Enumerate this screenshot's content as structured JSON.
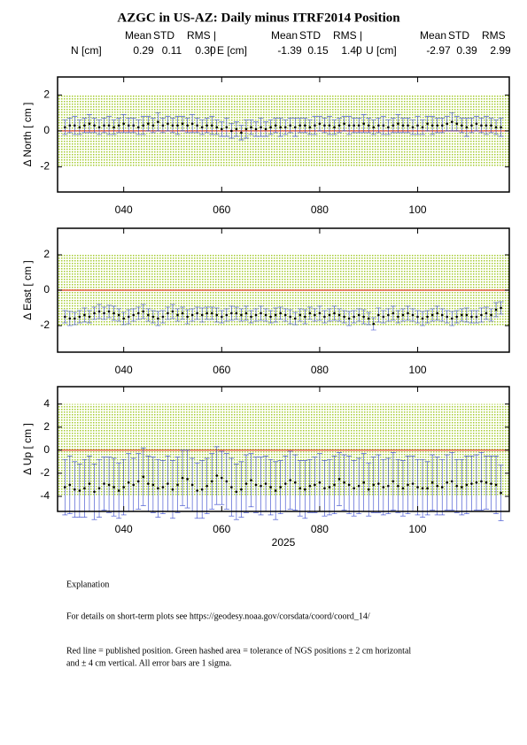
{
  "header": {
    "title": "AZGC in US-AZ: Daily minus ITRF2014 Position",
    "stats": [
      {
        "label": "N [cm]",
        "headers": [
          "Mean",
          "STD",
          "RMS |"
        ],
        "values": [
          "0.29",
          "0.11",
          "0.30"
        ],
        "separator": "|"
      },
      {
        "label": "E [cm]",
        "headers": [
          "Mean",
          "STD",
          "RMS |"
        ],
        "values": [
          "-1.39",
          "0.15",
          "1.40"
        ],
        "separator": "|"
      },
      {
        "label": "U [cm]",
        "headers": [
          "Mean",
          "STD",
          "RMS"
        ],
        "values": [
          "-2.97",
          "0.39",
          "2.99"
        ]
      }
    ]
  },
  "chart_data": [
    {
      "type": "errorbar",
      "y_label": "Δ North  [ cm ]",
      "x": [
        28,
        29,
        30,
        31,
        32,
        33,
        34,
        35,
        36,
        37,
        38,
        39,
        40,
        41,
        42,
        43,
        44,
        45,
        46,
        47,
        48,
        49,
        50,
        51,
        52,
        53,
        54,
        55,
        56,
        57,
        58,
        59,
        60,
        61,
        62,
        63,
        64,
        65,
        66,
        67,
        68,
        69,
        70,
        71,
        72,
        73,
        74,
        75,
        76,
        77,
        78,
        79,
        80,
        81,
        82,
        83,
        84,
        85,
        86,
        87,
        88,
        89,
        90,
        91,
        92,
        93,
        94,
        95,
        96,
        97,
        98,
        99,
        100,
        101,
        102,
        103,
        104,
        105,
        106,
        107,
        108,
        109,
        110,
        111,
        112,
        113,
        114,
        115,
        116,
        117
      ],
      "values": [
        0.2,
        0.3,
        0.3,
        0.2,
        0.3,
        0.4,
        0.3,
        0.2,
        0.3,
        0.3,
        0.2,
        0.3,
        0.4,
        0.3,
        0.3,
        0.2,
        0.3,
        0.4,
        0.3,
        0.5,
        0.3,
        0.4,
        0.3,
        0.3,
        0.4,
        0.3,
        0.4,
        0.3,
        0.2,
        0.3,
        0.3,
        0.2,
        0.1,
        0.2,
        0.0,
        0.1,
        -0.1,
        0.1,
        0.2,
        0.1,
        0.2,
        0.1,
        0.2,
        0.3,
        0.2,
        0.2,
        0.3,
        0.2,
        0.3,
        0.3,
        0.2,
        0.3,
        0.4,
        0.3,
        0.3,
        0.2,
        0.3,
        0.4,
        0.3,
        0.3,
        0.3,
        0.4,
        0.3,
        0.2,
        0.3,
        0.3,
        0.2,
        0.3,
        0.4,
        0.3,
        0.3,
        0.2,
        0.3,
        0.2,
        0.4,
        0.3,
        0.3,
        0.3,
        0.4,
        0.5,
        0.4,
        0.3,
        0.2,
        0.3,
        0.4,
        0.3,
        0.3,
        0.3,
        0.2,
        0.2
      ],
      "errors": [
        0.4,
        0.4,
        0.5,
        0.4,
        0.4,
        0.5,
        0.4,
        0.4,
        0.4,
        0.5,
        0.4,
        0.4,
        0.5,
        0.4,
        0.4,
        0.4,
        0.5,
        0.4,
        0.4,
        0.5,
        0.4,
        0.4,
        0.4,
        0.5,
        0.4,
        0.4,
        0.5,
        0.4,
        0.4,
        0.4,
        0.5,
        0.4,
        0.4,
        0.5,
        0.4,
        0.4,
        0.4,
        0.5,
        0.4,
        0.4,
        0.5,
        0.4,
        0.4,
        0.4,
        0.5,
        0.4,
        0.4,
        0.5,
        0.4,
        0.4,
        0.4,
        0.5,
        0.4,
        0.4,
        0.5,
        0.4,
        0.4,
        0.4,
        0.5,
        0.4,
        0.4,
        0.5,
        0.4,
        0.4,
        0.4,
        0.5,
        0.4,
        0.4,
        0.5,
        0.4,
        0.4,
        0.4,
        0.5,
        0.4,
        0.4,
        0.5,
        0.4,
        0.4,
        0.4,
        0.5,
        0.4,
        0.4,
        0.5,
        0.4,
        0.4,
        0.4,
        0.5,
        0.4,
        0.4,
        0.5
      ],
      "xlim": [
        26.5,
        118.7
      ],
      "ylim": [
        -3.4,
        3.0
      ],
      "xticks": [
        {
          "value": 40,
          "label": "040"
        },
        {
          "value": 60,
          "label": "060"
        },
        {
          "value": 80,
          "label": "080"
        },
        100
      ],
      "yticks": [
        -2,
        0,
        2
      ],
      "tolerance": [
        -2,
        2
      ],
      "reference": 0,
      "color": "#000000",
      "error_color": "#3344cc",
      "reference_color": "#e03a20",
      "tolerance_color": "#a6cc33"
    },
    {
      "type": "errorbar",
      "y_label": "Δ East  [ cm ]",
      "x": [
        28,
        29,
        30,
        31,
        32,
        33,
        34,
        35,
        36,
        37,
        38,
        39,
        40,
        41,
        42,
        43,
        44,
        45,
        46,
        47,
        48,
        49,
        50,
        51,
        52,
        53,
        54,
        55,
        56,
        57,
        58,
        59,
        60,
        61,
        62,
        63,
        64,
        65,
        66,
        67,
        68,
        69,
        70,
        71,
        72,
        73,
        74,
        75,
        76,
        77,
        78,
        79,
        80,
        81,
        82,
        83,
        84,
        85,
        86,
        87,
        88,
        89,
        90,
        91,
        92,
        93,
        94,
        95,
        96,
        97,
        98,
        99,
        100,
        101,
        102,
        103,
        104,
        105,
        106,
        107,
        108,
        109,
        110,
        111,
        112,
        113,
        114,
        115,
        116,
        117
      ],
      "values": [
        -1.5,
        -1.6,
        -1.6,
        -1.5,
        -1.4,
        -1.5,
        -1.3,
        -1.2,
        -1.3,
        -1.2,
        -1.3,
        -1.4,
        -1.6,
        -1.5,
        -1.4,
        -1.3,
        -1.2,
        -1.4,
        -1.5,
        -1.6,
        -1.5,
        -1.3,
        -1.2,
        -1.4,
        -1.3,
        -1.5,
        -1.4,
        -1.3,
        -1.4,
        -1.3,
        -1.3,
        -1.4,
        -1.5,
        -1.4,
        -1.3,
        -1.3,
        -1.4,
        -1.3,
        -1.5,
        -1.4,
        -1.3,
        -1.4,
        -1.5,
        -1.4,
        -1.3,
        -1.4,
        -1.5,
        -1.6,
        -1.4,
        -1.5,
        -1.3,
        -1.4,
        -1.3,
        -1.5,
        -1.4,
        -1.3,
        -1.4,
        -1.5,
        -1.6,
        -1.5,
        -1.4,
        -1.5,
        -1.6,
        -1.9,
        -1.4,
        -1.5,
        -1.4,
        -1.3,
        -1.5,
        -1.4,
        -1.3,
        -1.4,
        -1.5,
        -1.6,
        -1.5,
        -1.4,
        -1.3,
        -1.4,
        -1.5,
        -1.6,
        -1.5,
        -1.4,
        -1.4,
        -1.5,
        -1.5,
        -1.4,
        -1.3,
        -1.4,
        -1.1,
        -1.0
      ],
      "errors": [
        0.35,
        0.4,
        0.35,
        0.35,
        0.4,
        0.35,
        0.35,
        0.4,
        0.35,
        0.35,
        0.4,
        0.35,
        0.35,
        0.4,
        0.35,
        0.35,
        0.4,
        0.35,
        0.35,
        0.4,
        0.35,
        0.35,
        0.4,
        0.35,
        0.35,
        0.4,
        0.35,
        0.35,
        0.4,
        0.35,
        0.35,
        0.4,
        0.35,
        0.35,
        0.4,
        0.35,
        0.35,
        0.4,
        0.35,
        0.35,
        0.4,
        0.35,
        0.35,
        0.4,
        0.35,
        0.35,
        0.4,
        0.35,
        0.35,
        0.4,
        0.35,
        0.35,
        0.4,
        0.35,
        0.35,
        0.4,
        0.35,
        0.35,
        0.4,
        0.35,
        0.35,
        0.4,
        0.35,
        0.35,
        0.4,
        0.35,
        0.35,
        0.4,
        0.35,
        0.35,
        0.4,
        0.35,
        0.35,
        0.4,
        0.35,
        0.35,
        0.4,
        0.35,
        0.35,
        0.4,
        0.35,
        0.35,
        0.4,
        0.35,
        0.35,
        0.4,
        0.35,
        0.35,
        0.4,
        0.35
      ],
      "xlim": [
        26.5,
        118.7
      ],
      "ylim": [
        -3.5,
        3.5
      ],
      "xticks": [
        {
          "value": 40,
          "label": "040"
        },
        {
          "value": 60,
          "label": "060"
        },
        {
          "value": 80,
          "label": "080"
        },
        100
      ],
      "yticks": [
        -2,
        0,
        2
      ],
      "tolerance": [
        -2,
        2
      ],
      "reference": 0,
      "color": "#000000",
      "error_color": "#3344cc",
      "reference_color": "#e03a20",
      "tolerance_color": "#a6cc33"
    },
    {
      "type": "errorbar",
      "y_label": "Δ Up  [ cm ]",
      "x_label": "2025",
      "x": [
        28,
        29,
        30,
        31,
        32,
        33,
        34,
        35,
        36,
        37,
        38,
        39,
        40,
        41,
        42,
        43,
        44,
        45,
        46,
        47,
        48,
        49,
        50,
        51,
        52,
        53,
        54,
        55,
        56,
        57,
        58,
        59,
        60,
        61,
        62,
        63,
        64,
        65,
        66,
        67,
        68,
        69,
        70,
        71,
        72,
        73,
        74,
        75,
        76,
        77,
        78,
        79,
        80,
        81,
        82,
        83,
        84,
        85,
        86,
        87,
        88,
        89,
        90,
        91,
        92,
        93,
        94,
        95,
        96,
        97,
        98,
        99,
        100,
        101,
        102,
        103,
        104,
        105,
        106,
        107,
        108,
        109,
        110,
        111,
        112,
        113,
        114,
        115,
        116,
        117
      ],
      "values": [
        -3.2,
        -3.0,
        -3.4,
        -3.5,
        -3.3,
        -2.9,
        -3.6,
        -3.3,
        -2.9,
        -3.0,
        -3.2,
        -3.5,
        -3.2,
        -2.8,
        -3.0,
        -2.7,
        -2.3,
        -2.9,
        -3.0,
        -3.3,
        -3.2,
        -2.9,
        -3.4,
        -3.0,
        -2.4,
        -2.5,
        -3.0,
        -3.5,
        -3.4,
        -3.1,
        -2.7,
        -2.2,
        -2.4,
        -2.7,
        -3.2,
        -3.6,
        -3.4,
        -2.9,
        -2.6,
        -3.0,
        -3.1,
        -2.9,
        -3.2,
        -3.5,
        -3.2,
        -2.9,
        -2.6,
        -2.8,
        -3.3,
        -3.4,
        -3.1,
        -3.0,
        -2.8,
        -3.3,
        -3.2,
        -3.0,
        -2.5,
        -2.8,
        -3.0,
        -3.3,
        -3.1,
        -2.8,
        -3.4,
        -3.0,
        -2.9,
        -3.2,
        -3.1,
        -2.7,
        -3.1,
        -3.3,
        -3.0,
        -2.9,
        -3.2,
        -3.3,
        -3.3,
        -2.8,
        -3.1,
        -3.2,
        -2.8,
        -2.7,
        -3.1,
        -3.2,
        -3.0,
        -2.9,
        -2.8,
        -2.7,
        -2.8,
        -2.9,
        -3.0,
        -3.7
      ],
      "errors": [
        2.4,
        2.5,
        2.4,
        2.3,
        2.5,
        2.4,
        2.4,
        2.5,
        2.3,
        2.4,
        2.5,
        2.4,
        2.4,
        2.5,
        2.3,
        2.4,
        2.5,
        2.4,
        2.4,
        2.5,
        2.3,
        2.4,
        2.5,
        2.4,
        2.4,
        2.5,
        2.3,
        2.4,
        2.5,
        2.4,
        2.4,
        2.5,
        2.3,
        2.4,
        2.5,
        2.4,
        2.4,
        2.5,
        2.3,
        2.4,
        2.5,
        2.4,
        2.4,
        2.5,
        2.3,
        2.4,
        2.5,
        2.4,
        2.4,
        2.5,
        2.3,
        2.4,
        2.5,
        2.4,
        2.4,
        2.5,
        2.3,
        2.4,
        2.5,
        2.4,
        2.4,
        2.5,
        2.3,
        2.4,
        2.5,
        2.4,
        2.4,
        2.5,
        2.3,
        2.4,
        2.5,
        2.4,
        2.4,
        2.5,
        2.3,
        2.4,
        2.5,
        2.4,
        2.4,
        2.5,
        2.3,
        2.4,
        2.5,
        2.4,
        2.4,
        2.5,
        2.3,
        2.4,
        2.5,
        2.4
      ],
      "xlim": [
        26.5,
        118.7
      ],
      "ylim": [
        -5.3,
        5.5
      ],
      "xticks": [
        {
          "value": 40,
          "label": "040"
        },
        {
          "value": 60,
          "label": "060"
        },
        {
          "value": 80,
          "label": "080"
        },
        100
      ],
      "yticks": [
        -4,
        -2,
        0,
        2,
        4
      ],
      "tolerance": [
        -4,
        4
      ],
      "reference": 0,
      "color": "#000000",
      "error_color": "#3344cc",
      "reference_color": "#e03a20",
      "tolerance_color": "#a6cc33"
    }
  ],
  "explanation": {
    "heading": "Explanation",
    "lines": [
      "For details on short-term plots see https://geodesy.noaa.gov/corsdata/coord/coord_14/",
      "Red line = published position.  Green hashed area = tolerance of NGS positions ± 2 cm horizontal",
      "and ± 4 cm vertical.  All error bars are 1 sigma."
    ]
  }
}
